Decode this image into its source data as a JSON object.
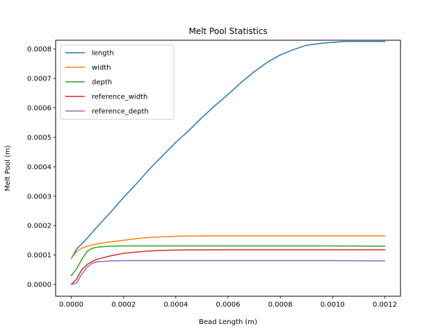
{
  "chart_data": {
    "type": "line",
    "title": "Melt Pool Statistics",
    "xlabel": "Bead Length (m)",
    "ylabel": "Melt Pool (m)",
    "xlim": [
      -6e-05,
      0.00126
    ],
    "ylim": [
      -4e-05,
      0.00083
    ],
    "x_ticks": [
      0,
      0.0002,
      0.0004,
      0.0006,
      0.0008,
      0.001,
      0.0012
    ],
    "x_tick_labels": [
      "0.0000",
      "0.0002",
      "0.0004",
      "0.0006",
      "0.0008",
      "0.0010",
      "0.0012"
    ],
    "y_ticks": [
      0,
      0.0001,
      0.0002,
      0.0003,
      0.0004,
      0.0005,
      0.0006,
      0.0007,
      0.0008
    ],
    "y_tick_labels": [
      "0.0000",
      "0.0001",
      "0.0002",
      "0.0003",
      "0.0004",
      "0.0005",
      "0.0006",
      "0.0007",
      "0.0008"
    ],
    "grid": false,
    "legend_position": "top-left",
    "series": [
      {
        "name": "length",
        "color": "#1f77b4",
        "x": [
          0,
          2e-05,
          4e-05,
          6e-05,
          0.0001,
          0.00015,
          0.0002,
          0.00025,
          0.0003,
          0.00035,
          0.0004,
          0.00045,
          0.0005,
          0.00055,
          0.0006,
          0.00065,
          0.0007,
          0.00075,
          0.0008,
          0.00085,
          0.0009,
          0.00095,
          0.001,
          0.00105,
          0.0011,
          0.00115,
          0.0012
        ],
        "values": [
          8.8e-05,
          0.00012,
          0.000138,
          0.000157,
          0.000197,
          0.000245,
          0.000296,
          0.000343,
          0.000393,
          0.000438,
          0.000483,
          0.000523,
          0.000567,
          0.000608,
          0.000646,
          0.000686,
          0.000723,
          0.000755,
          0.00078,
          0.000798,
          0.000813,
          0.000819,
          0.000823,
          0.000826,
          0.000826,
          0.000826,
          0.000826
        ]
      },
      {
        "name": "width",
        "color": "#ff7f0e",
        "x": [
          0,
          2e-05,
          4e-05,
          6e-05,
          0.0001,
          0.00015,
          0.0002,
          0.00025,
          0.0003,
          0.0004,
          0.0005,
          0.0006,
          0.0008,
          0.001,
          0.0012
        ],
        "values": [
          8.8e-05,
          0.000112,
          0.000123,
          0.00013,
          0.000138,
          0.000145,
          0.00015,
          0.000156,
          0.00016,
          0.000164,
          0.000165,
          0.000165,
          0.000165,
          0.000165,
          0.000165
        ]
      },
      {
        "name": "depth",
        "color": "#2ca02c",
        "x": [
          0,
          2e-05,
          4e-05,
          6e-05,
          8e-05,
          0.0001,
          0.00015,
          0.0002,
          0.0003,
          0.0004,
          0.0006,
          0.0008,
          0.001,
          0.0012
        ],
        "values": [
          3e-05,
          5.3e-05,
          8.5e-05,
          0.000112,
          0.000123,
          0.000127,
          0.00013,
          0.000131,
          0.000131,
          0.000131,
          0.000131,
          0.000131,
          0.000131,
          0.00013
        ]
      },
      {
        "name": "reference_width",
        "color": "#d62728",
        "x": [
          0,
          2e-05,
          4e-05,
          6e-05,
          8e-05,
          0.0001,
          0.00015,
          0.0002,
          0.0003,
          0.0004,
          0.0006,
          0.0008,
          0.001,
          0.0012
        ],
        "values": [
          0,
          1.8e-05,
          5e-05,
          6.8e-05,
          7.8e-05,
          8.6e-05,
          9.7e-05,
          0.000106,
          0.000114,
          0.000117,
          0.000118,
          0.000118,
          0.000118,
          0.000118
        ]
      },
      {
        "name": "reference_depth",
        "color": "#9467bd",
        "x": [
          0,
          2e-05,
          4e-05,
          6e-05,
          8e-05,
          0.0001,
          0.00015,
          0.0002,
          0.0003,
          0.0004,
          0.0006,
          0.0008,
          0.001,
          0.0012
        ],
        "values": [
          0,
          5e-06,
          3.5e-05,
          5.8e-05,
          7.2e-05,
          7.7e-05,
          8e-05,
          8.1e-05,
          8.1e-05,
          8.1e-05,
          8.1e-05,
          8.1e-05,
          8.1e-05,
          8e-05
        ]
      }
    ]
  }
}
